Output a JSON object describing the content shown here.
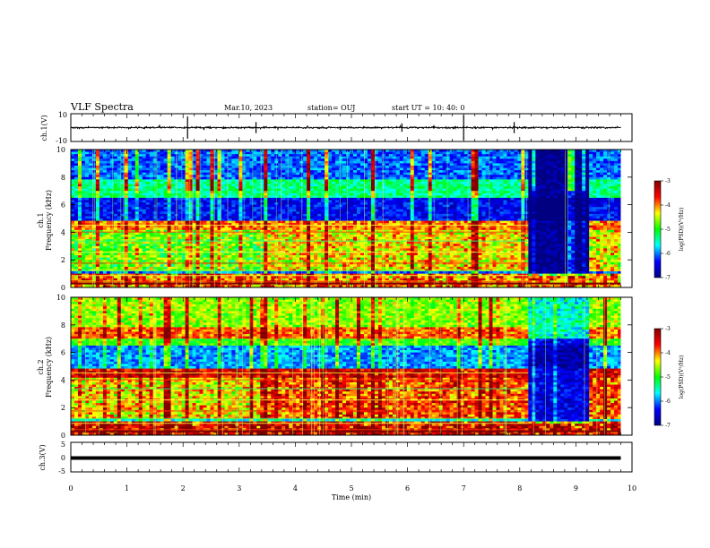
{
  "header": {
    "title": "VLF Spectra",
    "date": "Mar.10, 2023",
    "station": "station= OUJ",
    "start_time": "start  UT =   10: 40: 0"
  },
  "colors": {
    "colormap": [
      "#000080",
      "#0000ff",
      "#00ffff",
      "#00ff00",
      "#ffff00",
      "#ff0000",
      "#800000"
    ],
    "trace": "#000000"
  },
  "chart_data": [
    {
      "type": "line",
      "panel": "ch1-waveform",
      "ylabel": "ch.1(V)",
      "ylim": [
        -10,
        10
      ],
      "yticks": [
        "10",
        "-10"
      ],
      "series": [
        {
          "values_note": "",
          "x": [
            0,
            10
          ],
          "y": [
            0,
            0
          ]
        }
      ]
    },
    {
      "type": "heatmap",
      "panel": "ch1-spectrogram",
      "ylabel_top": "ch.1",
      "ylabel": "Frequency  (kHz)",
      "ylim": [
        0,
        10
      ],
      "yticks": [
        "0",
        "2",
        "4",
        "6",
        "8",
        "10"
      ],
      "colorbar": {
        "label": "log(PSD)(V²/Hz)",
        "range": [
          -7,
          -3
        ],
        "ticks": [
          "-3",
          "-4",
          "-5",
          "-6",
          "-7"
        ]
      }
    },
    {
      "type": "heatmap",
      "panel": "ch2-spectrogram",
      "ylabel_top": "ch.2",
      "ylabel": "Frequency  (kHz)",
      "ylim": [
        0,
        10
      ],
      "yticks": [
        "0",
        "2",
        "4",
        "6",
        "8",
        "10"
      ],
      "colorbar": {
        "label": "log(PSD)(V²/Hz)",
        "range": [
          -7,
          -3
        ],
        "ticks": [
          "-3",
          "-4",
          "-5",
          "-6",
          "-7"
        ]
      }
    },
    {
      "type": "line",
      "panel": "ch3-waveform",
      "ylabel": "ch.3(V)",
      "ylim": [
        -5,
        5
      ],
      "yticks": [
        "5",
        "0",
        "-5"
      ],
      "series": [
        {
          "x": [
            0,
            9.8
          ],
          "y": [
            0,
            0
          ]
        }
      ]
    }
  ],
  "xaxis": {
    "xlabel": "Time  (min)",
    "xlim": [
      0,
      10
    ],
    "ticks": [
      "0",
      "1",
      "2",
      "3",
      "4",
      "5",
      "6",
      "7",
      "8",
      "9",
      "10"
    ]
  }
}
